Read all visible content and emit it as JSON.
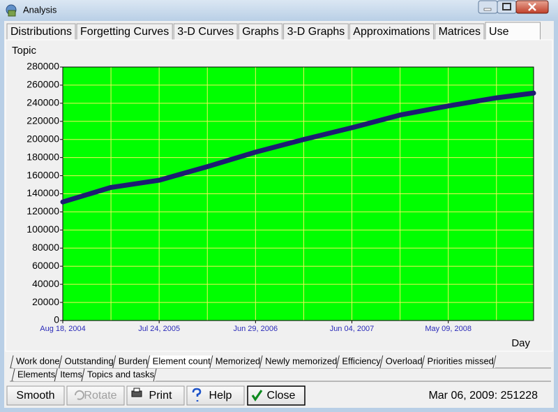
{
  "window": {
    "title": "Analysis"
  },
  "tabs": [
    "Distributions",
    "Forgetting Curves",
    "3-D Curves",
    "Graphs",
    "3-D Graphs",
    "Approximations",
    "Matrices",
    "Use"
  ],
  "selected_tab": 7,
  "chart_data": {
    "type": "line",
    "y_label": "Topic",
    "x_label": "Day",
    "x": [
      "2004-08-18",
      "2005-02-04",
      "2005-07-24",
      "2006-01-10",
      "2006-06-29",
      "2006-12-16",
      "2007-06-04",
      "2007-11-21",
      "2008-05-09",
      "2008-10-26",
      "2009-03-06"
    ],
    "values": [
      131000,
      147000,
      155000,
      170000,
      186000,
      200000,
      213000,
      227000,
      237000,
      246000,
      251228
    ],
    "color": "#1c1c72",
    "background": "#00ff00",
    "grid": true,
    "grid_color": "#f2f25a",
    "xlim": [
      "2004-08-18",
      "2009-03-06"
    ],
    "xticks": [
      {
        "value": "2004-08-18",
        "label": "Aug 18, 2004"
      },
      {
        "value": "2005-07-24",
        "label": "Jul 24, 2005"
      },
      {
        "value": "2006-06-29",
        "label": "Jun 29, 2006"
      },
      {
        "value": "2007-06-04",
        "label": "Jun 04, 2007"
      },
      {
        "value": "2008-05-09",
        "label": "May 09, 2008"
      }
    ],
    "ylim": [
      0,
      280000
    ],
    "yticks": [
      0,
      20000,
      40000,
      60000,
      80000,
      100000,
      120000,
      140000,
      160000,
      180000,
      200000,
      220000,
      240000,
      260000,
      280000
    ]
  },
  "subtabs": [
    [
      "Work done",
      "Outstanding",
      "Burden",
      "Element count",
      "Memorized",
      "Newly memorized",
      "Efficiency",
      "Overload",
      "Priorities missed"
    ],
    [
      "Elements",
      "Items",
      "Topics and tasks"
    ]
  ],
  "selected_subtab": [
    0,
    3
  ],
  "buttons": [
    "Smooth",
    "Rotate",
    "Print",
    "Help",
    "Close"
  ],
  "disabled_buttons": [
    1
  ],
  "status": "Mar 06, 2009: 251228"
}
